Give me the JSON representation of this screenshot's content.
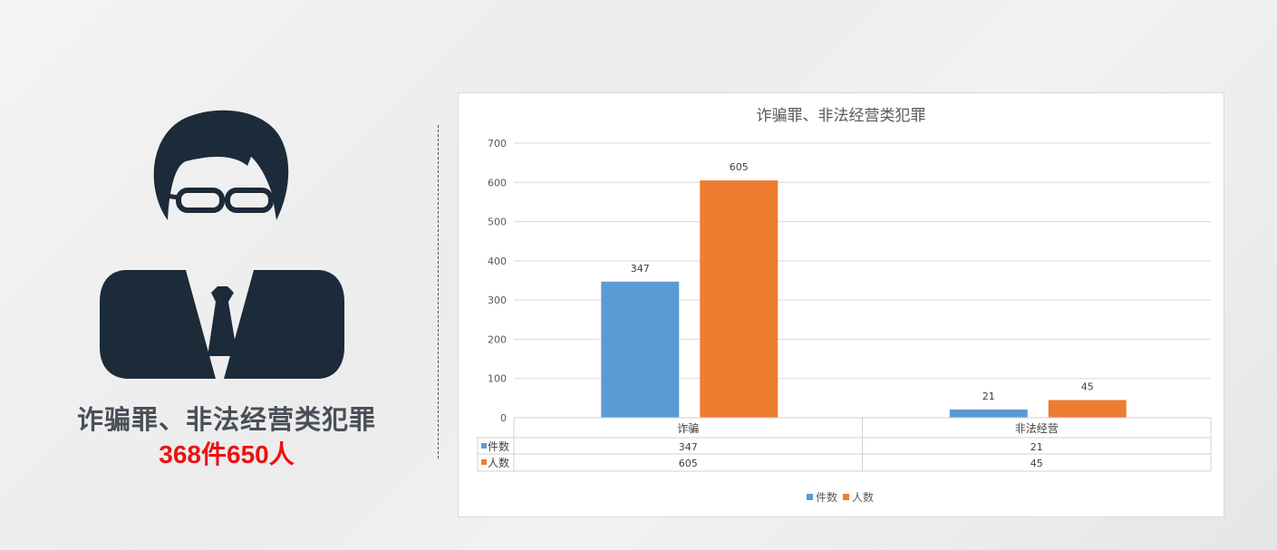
{
  "left_panel": {
    "icon": "businessman-icon",
    "caption": "诈骗罪、非法经营类犯罪",
    "stats": "368件650人",
    "stats_color": "#ee1111"
  },
  "chart_data": {
    "type": "bar",
    "title": "诈骗罪、非法经营类犯罪",
    "categories": [
      "诈骗",
      "非法经营"
    ],
    "series": [
      {
        "name": "件数",
        "values": [
          347,
          21
        ],
        "color": "#5b9bd5"
      },
      {
        "name": "人数",
        "values": [
          605,
          45
        ],
        "color": "#ed7d31"
      }
    ],
    "ylim": [
      0,
      700
    ],
    "yticks": [
      0,
      100,
      200,
      300,
      400,
      500,
      600,
      700
    ],
    "grid": true,
    "data_table": true,
    "legend": "bottom"
  }
}
